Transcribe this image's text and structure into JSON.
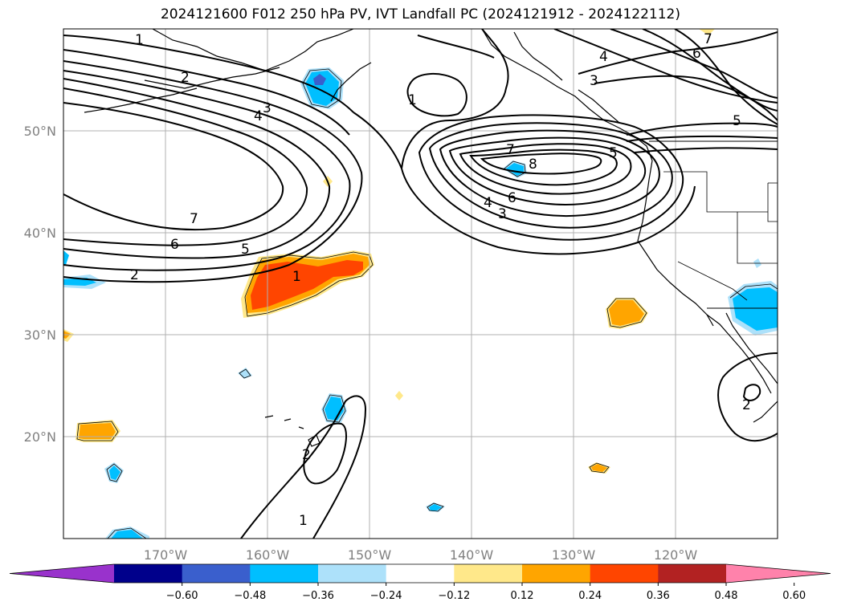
{
  "title": "2024121600 F012 250 hPa PV, IVT Landfall PC (2024121912 - 2024122112)",
  "latitude_labels": [
    "50°N",
    "40°N",
    "30°N",
    "20°N"
  ],
  "longitude_labels": [
    "170°W",
    "160°W",
    "150°W",
    "140°W",
    "130°W",
    "120°W"
  ],
  "colorbar": {
    "colors": [
      "#9932CC",
      "#00008B",
      "#3A5FCD",
      "#00BFFF",
      "#ADE1FA",
      "#FFFFFF",
      "#FFE88A",
      "#FFA500",
      "#FF4500",
      "#B22222",
      "#FF82AB"
    ],
    "tick_labels": [
      "−0.60",
      "−0.48",
      "−0.36",
      "−0.24",
      "−0.12",
      "0.12",
      "0.24",
      "0.36",
      "0.48",
      "0.60"
    ]
  },
  "contour_labels": [
    "1",
    "2",
    "3",
    "4",
    "5",
    "6",
    "7",
    "8"
  ],
  "colors": {
    "grid": "#b0b0b0",
    "contour": "#000000",
    "coast": "#000000"
  }
}
